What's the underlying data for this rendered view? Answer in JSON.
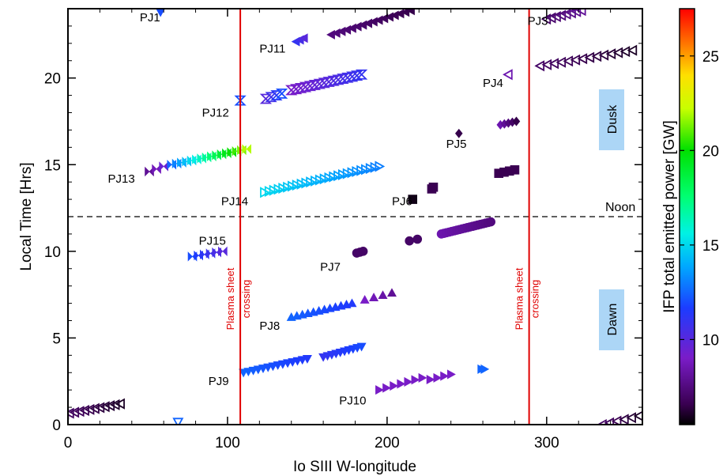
{
  "chart_data": {
    "type": "scatter",
    "title": "",
    "xlabel": "Io SIII W-longitude",
    "ylabel": "Local Time [Hrs]",
    "xlim": [
      0,
      360
    ],
    "ylim": [
      0,
      24
    ],
    "xticks": [
      0,
      100,
      200,
      300
    ],
    "yticks": [
      0,
      5,
      10,
      15,
      20
    ],
    "grid": false,
    "colorbar": {
      "label": "IFP total emitted power [GW]",
      "range": [
        5.5,
        27.5
      ],
      "ticks": [
        10,
        15,
        20,
        25
      ],
      "colormap": "rainbow"
    },
    "reference_lines": {
      "noon": {
        "y": 12,
        "label": "Noon",
        "color": "#000000"
      },
      "plasma_sheet": [
        {
          "x": 108,
          "label_line1": "Plasma sheet",
          "label_line2": "crossing",
          "color": "#e00000"
        },
        {
          "x": 289,
          "label_line1": "Plasma sheet",
          "label_line2": "crossing",
          "color": "#e00000"
        }
      ]
    },
    "region_labels": [
      {
        "text": "Dusk",
        "x": 342,
        "y": 17.2
      },
      {
        "text": "Dawn",
        "x": 342,
        "y": 5.0
      }
    ],
    "series": [
      {
        "name": "PJ1",
        "label_x": 45,
        "label_y": 23.5,
        "marker": "tri-down",
        "open": false,
        "segments": [
          {
            "x0": 58,
            "x1": 58,
            "y0": 23.8,
            "y1": 23.8,
            "n": 1,
            "p0": 12,
            "p1": 12
          }
        ]
      },
      {
        "name": "PJ3",
        "label_x": 288,
        "label_y": 23.3,
        "marker": "tri-left",
        "open": true,
        "segments": [
          {
            "x0": 300,
            "x1": 322,
            "y0": 23.4,
            "y1": 23.9,
            "n": 8,
            "p0": 7,
            "p1": 8
          },
          {
            "x0": 296,
            "x1": 354,
            "y0": 20.7,
            "y1": 21.6,
            "n": 14,
            "p0": 7,
            "p1": 6
          },
          {
            "x0": 335,
            "x1": 358,
            "y0": 0.0,
            "y1": 0.5,
            "n": 6,
            "p0": 7,
            "p1": 6
          },
          {
            "x0": -2,
            "x1": 33,
            "y0": 0.6,
            "y1": 1.2,
            "n": 12,
            "p0": 7,
            "p1": 6
          }
        ]
      },
      {
        "name": "PJ4",
        "label_x": 260,
        "label_y": 19.7,
        "marker": "tri-left",
        "open": true,
        "segments": [
          {
            "x0": 276,
            "x1": 276,
            "y0": 20.2,
            "y1": 20.2,
            "n": 1,
            "p0": 8.5,
            "p1": 8.5
          }
        ]
      },
      {
        "name": "PJ5",
        "label_x": 237,
        "label_y": 16.2,
        "marker": "diamond",
        "open": false,
        "segments": [
          {
            "x0": 245,
            "x1": 245,
            "y0": 16.8,
            "y1": 16.8,
            "n": 1,
            "p0": 6.5,
            "p1": 6.5
          },
          {
            "x0": 271,
            "x1": 281,
            "y0": 17.3,
            "y1": 17.5,
            "n": 5,
            "p0": 8.5,
            "p1": 6.5
          }
        ]
      },
      {
        "name": "PJ6",
        "label_x": 203,
        "label_y": 12.9,
        "marker": "square",
        "open": false,
        "segments": [
          {
            "x0": 216,
            "x1": 216,
            "y0": 13.0,
            "y1": 13.0,
            "n": 1,
            "p0": 5.8,
            "p1": 5.8
          },
          {
            "x0": 228,
            "x1": 229,
            "y0": 13.6,
            "y1": 13.7,
            "n": 2,
            "p0": 6.6,
            "p1": 6.6
          },
          {
            "x0": 270,
            "x1": 280,
            "y0": 14.5,
            "y1": 14.7,
            "n": 4,
            "p0": 6.6,
            "p1": 6.6
          }
        ]
      },
      {
        "name": "PJ7",
        "label_x": 158,
        "label_y": 9.1,
        "marker": "circle",
        "open": false,
        "segments": [
          {
            "x0": 181,
            "x1": 185,
            "y0": 9.9,
            "y1": 10.0,
            "n": 3,
            "p0": 7,
            "p1": 7
          },
          {
            "x0": 214,
            "x1": 219,
            "y0": 10.6,
            "y1": 10.7,
            "n": 2,
            "p0": 7,
            "p1": 7
          },
          {
            "x0": 234,
            "x1": 265,
            "y0": 11.0,
            "y1": 11.7,
            "n": 20,
            "p0": 8.5,
            "p1": 7.5
          }
        ]
      },
      {
        "name": "PJ8",
        "label_x": 120,
        "label_y": 5.7,
        "marker": "tri-up",
        "open": false,
        "segments": [
          {
            "x0": 140,
            "x1": 178,
            "y0": 6.2,
            "y1": 7.0,
            "n": 12,
            "p0": 12.5,
            "p1": 11.5
          },
          {
            "x0": 186,
            "x1": 203,
            "y0": 7.2,
            "y1": 7.6,
            "n": 4,
            "p0": 9,
            "p1": 8
          }
        ]
      },
      {
        "name": "PJ9",
        "label_x": 88,
        "label_y": 2.5,
        "marker": "tri-down",
        "open": false,
        "segments": [
          {
            "x0": 110,
            "x1": 150,
            "y0": 3.0,
            "y1": 3.8,
            "n": 14,
            "p0": 12.5,
            "p1": 11.5
          },
          {
            "x0": 160,
            "x1": 184,
            "y0": 3.9,
            "y1": 4.5,
            "n": 10,
            "p0": 11,
            "p1": 12
          }
        ]
      },
      {
        "name": "PJ10",
        "label_x": 170,
        "label_y": 1.4,
        "marker": "tri-right",
        "open": false,
        "segments": [
          {
            "x0": 195,
            "x1": 222,
            "y0": 2.0,
            "y1": 2.7,
            "n": 7,
            "p0": 9,
            "p1": 9
          },
          {
            "x0": 227,
            "x1": 240,
            "y0": 2.6,
            "y1": 2.9,
            "n": 4,
            "p0": 9,
            "p1": 9
          },
          {
            "x0": 259,
            "x1": 261,
            "y0": 3.2,
            "y1": 3.2,
            "n": 2,
            "p0": 12.5,
            "p1": 12.5
          }
        ]
      },
      {
        "name": "PJ11",
        "label_x": 120,
        "label_y": 21.7,
        "marker": "tri-left",
        "open": false,
        "segments": [
          {
            "x0": 143,
            "x1": 148,
            "y0": 22.1,
            "y1": 22.3,
            "n": 3,
            "p0": 11,
            "p1": 10
          },
          {
            "x0": 165,
            "x1": 215,
            "y0": 22.5,
            "y1": 23.9,
            "n": 16,
            "p0": 7.5,
            "p1": 6.5
          }
        ]
      },
      {
        "name": "PJ12",
        "label_x": 84,
        "label_y": 18.0,
        "marker": "hourglass",
        "open": true,
        "segments": [
          {
            "x0": 108,
            "x1": 108,
            "y0": 18.7,
            "y1": 18.7,
            "n": 1,
            "p0": 12,
            "p1": 12
          },
          {
            "x0": 124,
            "x1": 134,
            "y0": 18.8,
            "y1": 19.1,
            "n": 4,
            "p0": 10,
            "p1": 12
          },
          {
            "x0": 140,
            "x1": 184,
            "y0": 19.3,
            "y1": 20.2,
            "n": 16,
            "p0": 9,
            "p1": 11
          }
        ]
      },
      {
        "name": "PJ13",
        "label_x": 25,
        "label_y": 14.2,
        "marker": "bowtie",
        "open": false,
        "segments": [
          {
            "x0": 51,
            "x1": 60,
            "y0": 14.6,
            "y1": 14.9,
            "n": 3,
            "p0": 8,
            "p1": 9.5
          },
          {
            "x0": 65,
            "x1": 112,
            "y0": 15.0,
            "y1": 15.9,
            "n": 16,
            "p0": 12.5,
            "p1": 22
          }
        ]
      },
      {
        "name": "PJ14",
        "label_x": 96,
        "label_y": 12.9,
        "marker": "tri-right",
        "open": true,
        "segments": [
          {
            "x0": 123,
            "x1": 195,
            "y0": 13.4,
            "y1": 14.9,
            "n": 26,
            "p0": 15,
            "p1": 13
          }
        ]
      },
      {
        "name": "PJ15",
        "label_x": 82,
        "label_y": 10.6,
        "marker": "bowtie",
        "open": false,
        "segments": [
          {
            "x0": 78,
            "x1": 97,
            "y0": 9.7,
            "y1": 10.0,
            "n": 6,
            "p0": 12,
            "p1": 10
          }
        ]
      },
      {
        "name": "",
        "label_x": null,
        "label_y": null,
        "marker": "tri-down",
        "open": true,
        "segments": [
          {
            "x0": 69,
            "x1": 69,
            "y0": 0.15,
            "y1": 0.15,
            "n": 1,
            "p0": 12.5,
            "p1": 12.5
          }
        ]
      }
    ]
  }
}
